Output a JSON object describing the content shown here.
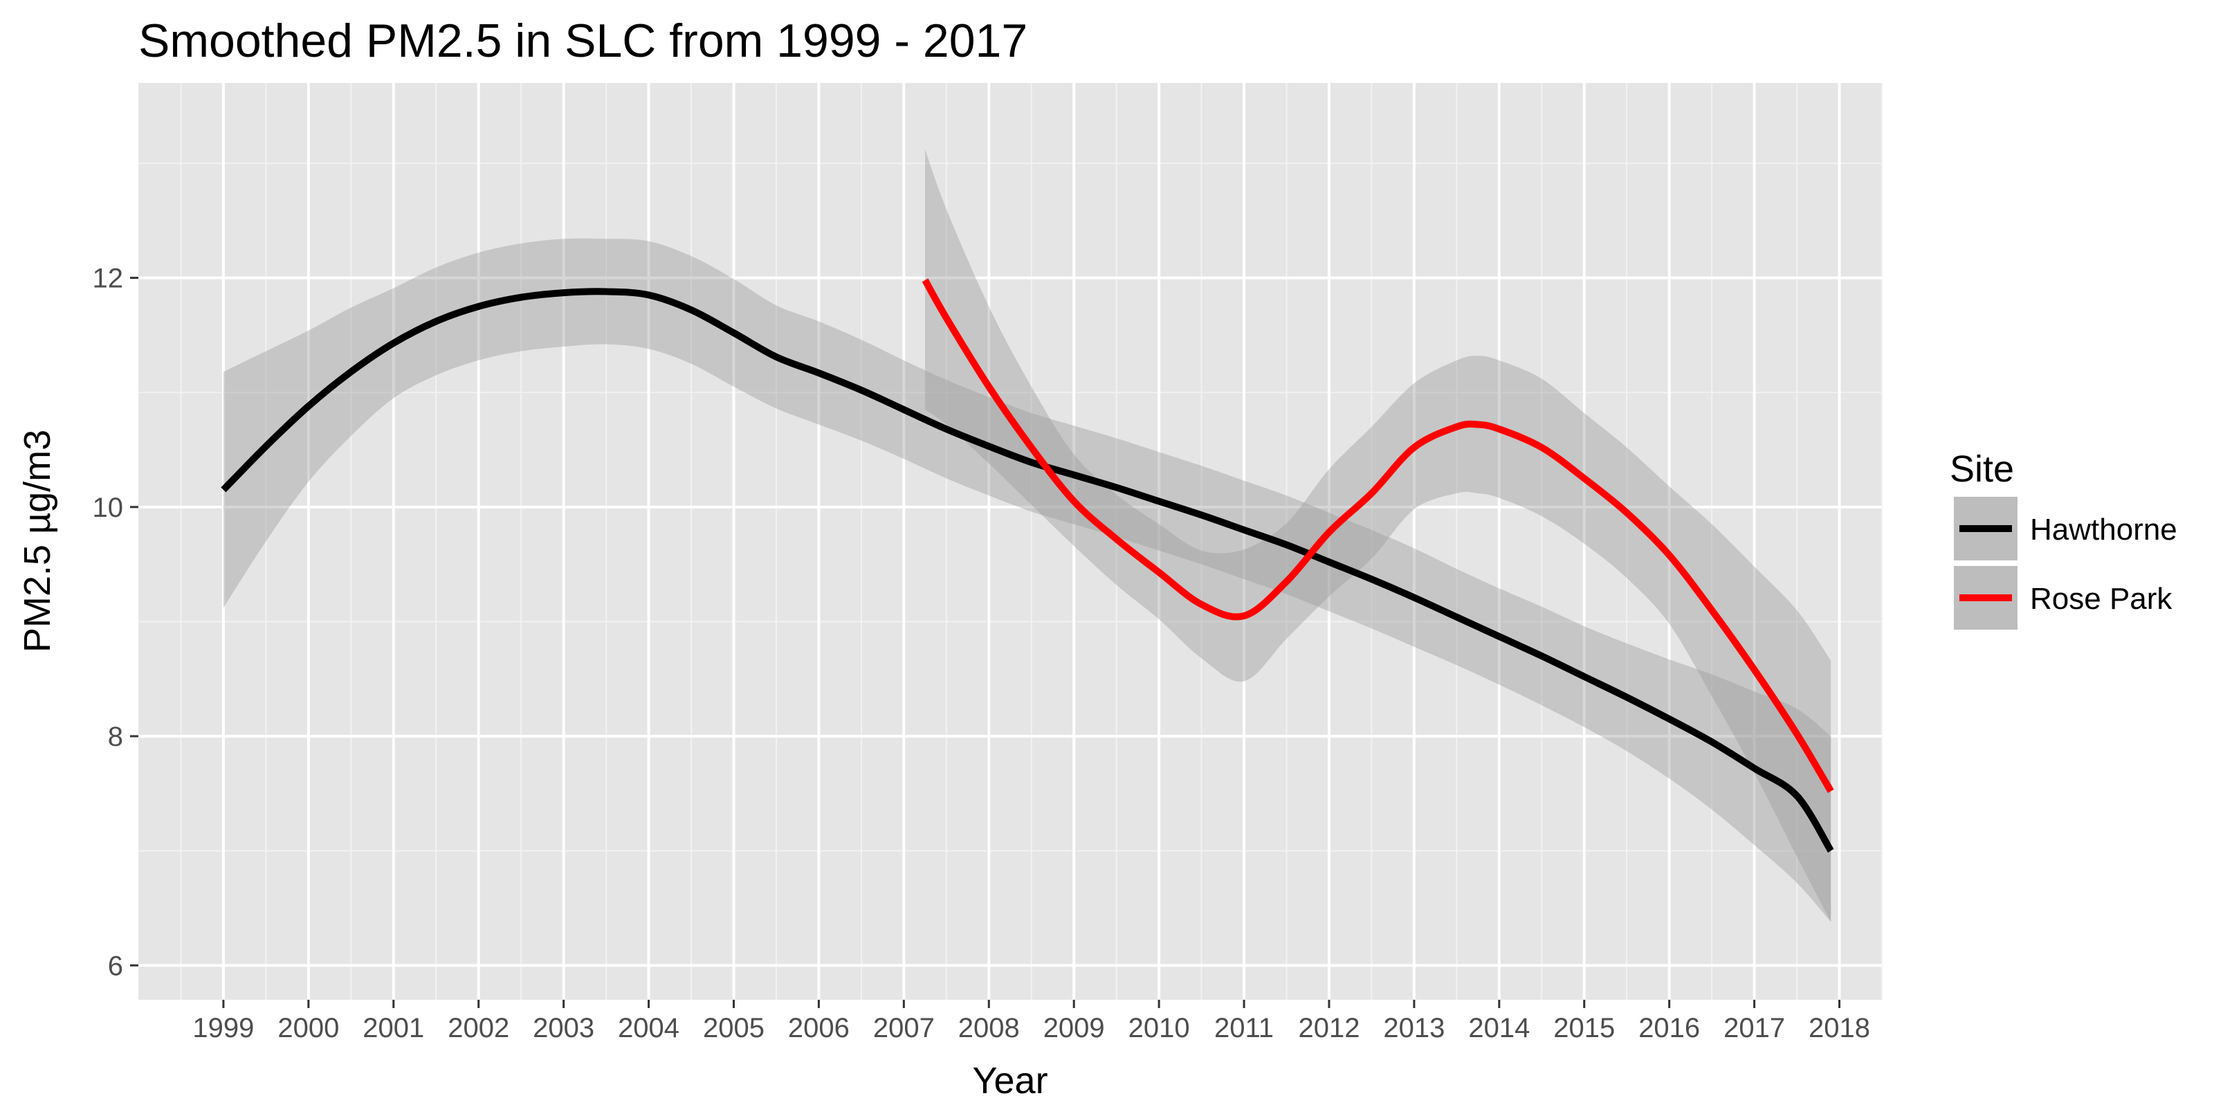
{
  "chart_data": {
    "type": "line",
    "title": "Smoothed PM2.5 in SLC from 1999 - 2017",
    "xlabel": "Year",
    "ylabel": "PM2.5 µg/m3",
    "xlim": [
      1998.0,
      2018.5
    ],
    "ylim": [
      5.7,
      13.7
    ],
    "x_ticks": [
      "1999",
      "2000",
      "2001",
      "2002",
      "2003",
      "2004",
      "2005",
      "2006",
      "2007",
      "2008",
      "2009",
      "2010",
      "2011",
      "2012",
      "2013",
      "2014",
      "2015",
      "2016",
      "2017",
      "2018"
    ],
    "y_ticks": [
      6,
      8,
      10,
      12
    ],
    "grid": true,
    "legend": {
      "title": "Site",
      "position": "right",
      "entries": [
        "Hawthorne",
        "Rose Park"
      ]
    },
    "series": [
      {
        "name": "Hawthorne",
        "color": "#000000",
        "x": [
          1999,
          1999.5,
          2000,
          2000.5,
          2001,
          2001.5,
          2002,
          2002.5,
          2003,
          2003.5,
          2004,
          2004.5,
          2005,
          2005.5,
          2006,
          2006.5,
          2007,
          2007.5,
          2008,
          2008.5,
          2009,
          2009.5,
          2010,
          2010.5,
          2011,
          2011.5,
          2012,
          2012.5,
          2013,
          2013.5,
          2014,
          2014.5,
          2015,
          2015.5,
          2016,
          2016.5,
          2017,
          2017.5,
          2017.9
        ],
        "y": [
          10.15,
          10.53,
          10.88,
          11.18,
          11.43,
          11.62,
          11.75,
          11.83,
          11.87,
          11.88,
          11.85,
          11.72,
          11.52,
          11.31,
          11.17,
          11.02,
          10.85,
          10.68,
          10.53,
          10.39,
          10.28,
          10.17,
          10.05,
          9.93,
          9.8,
          9.67,
          9.52,
          9.37,
          9.21,
          9.04,
          8.87,
          8.7,
          8.52,
          8.34,
          8.15,
          7.95,
          7.72,
          7.48,
          7.0
        ],
        "ci_lower": [
          9.12,
          9.7,
          10.22,
          10.62,
          10.95,
          11.15,
          11.28,
          11.36,
          11.4,
          11.42,
          11.38,
          11.25,
          11.05,
          10.86,
          10.72,
          10.58,
          10.42,
          10.25,
          10.1,
          9.96,
          9.85,
          9.74,
          9.62,
          9.5,
          9.37,
          9.24,
          9.09,
          8.94,
          8.78,
          8.62,
          8.45,
          8.27,
          8.08,
          7.87,
          7.63,
          7.36,
          7.05,
          6.72,
          6.38
        ],
        "ci_upper": [
          11.18,
          11.36,
          11.54,
          11.74,
          11.91,
          12.09,
          12.22,
          12.3,
          12.34,
          12.34,
          12.32,
          12.19,
          11.99,
          11.76,
          11.62,
          11.46,
          11.28,
          11.11,
          10.96,
          10.82,
          10.71,
          10.6,
          10.48,
          10.36,
          10.23,
          10.1,
          9.95,
          9.8,
          9.64,
          9.46,
          9.29,
          9.13,
          8.96,
          8.81,
          8.67,
          8.54,
          8.39,
          8.24,
          8.0
        ]
      },
      {
        "name": "Rose Park",
        "color": "#ff0000",
        "x": [
          2007.25,
          2007.5,
          2008,
          2008.5,
          2009,
          2009.5,
          2010,
          2010.5,
          2011,
          2011.5,
          2012,
          2012.5,
          2013,
          2013.5,
          2013.75,
          2014,
          2014.5,
          2015,
          2015.5,
          2016,
          2016.5,
          2017,
          2017.5,
          2017.9
        ],
        "y": [
          11.98,
          11.65,
          11.05,
          10.52,
          10.05,
          9.72,
          9.43,
          9.15,
          9.05,
          9.35,
          9.78,
          10.12,
          10.52,
          10.7,
          10.72,
          10.68,
          10.52,
          10.25,
          9.95,
          9.58,
          9.1,
          8.58,
          8.02,
          7.52
        ],
        "ci_lower": [
          10.85,
          10.72,
          10.38,
          10.02,
          9.66,
          9.32,
          9.02,
          8.68,
          8.48,
          8.85,
          9.22,
          9.55,
          9.98,
          10.12,
          10.12,
          10.08,
          9.92,
          9.68,
          9.38,
          8.98,
          8.35,
          7.68,
          6.95,
          6.38
        ],
        "ci_upper": [
          13.12,
          12.6,
          11.75,
          11.05,
          10.46,
          10.11,
          9.85,
          9.62,
          9.63,
          9.86,
          10.33,
          10.7,
          11.08,
          11.28,
          11.32,
          11.28,
          11.12,
          10.82,
          10.52,
          10.18,
          9.85,
          9.48,
          9.1,
          8.66
        ]
      }
    ]
  }
}
